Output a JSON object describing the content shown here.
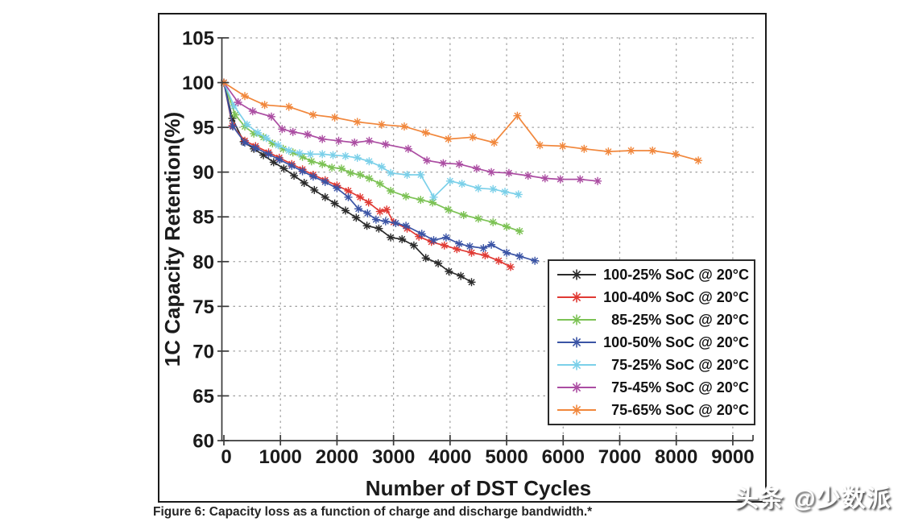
{
  "figure": {
    "caption": "Figure 6: Capacity loss as a function of charge and discharge bandwidth.*",
    "watermark": "头条 @少数派"
  },
  "chart_data": {
    "type": "line",
    "title": "",
    "xlabel": "Number of DST Cycles",
    "ylabel": "1C Capacity Retention(%)",
    "xlim": [
      0,
      9400
    ],
    "ylim": [
      60,
      105
    ],
    "x_ticks": [
      0,
      1000,
      2000,
      3000,
      4000,
      5000,
      6000,
      7000,
      8000,
      9000
    ],
    "y_ticks": [
      60,
      65,
      70,
      75,
      80,
      85,
      90,
      95,
      100,
      105
    ],
    "grid": true,
    "grid_style": "dotted",
    "grid_color": "#a0a0a0",
    "axis_color": "#3a3a3a",
    "marker": "asterisk",
    "legend_position": "lower right",
    "series": [
      {
        "label": "100-25% SoC @ 20°C",
        "color": "#2b2b2b",
        "points": [
          [
            0,
            100
          ],
          [
            150,
            96.0
          ],
          [
            350,
            93.4
          ],
          [
            530,
            92.6
          ],
          [
            700,
            91.9
          ],
          [
            880,
            91.1
          ],
          [
            1060,
            90.4
          ],
          [
            1240,
            89.6
          ],
          [
            1420,
            88.8
          ],
          [
            1600,
            88.0
          ],
          [
            1790,
            87.2
          ],
          [
            1960,
            86.5
          ],
          [
            2150,
            85.7
          ],
          [
            2340,
            84.9
          ],
          [
            2530,
            84.0
          ],
          [
            2740,
            83.7
          ],
          [
            2950,
            82.7
          ],
          [
            3150,
            82.5
          ],
          [
            3360,
            81.8
          ],
          [
            3570,
            80.4
          ],
          [
            3790,
            79.8
          ],
          [
            3980,
            78.9
          ],
          [
            4190,
            78.4
          ],
          [
            4380,
            77.7
          ]
        ]
      },
      {
        "label": "100-40% SoC @ 20°C",
        "color": "#e03a34",
        "points": [
          [
            0,
            100
          ],
          [
            150,
            95.2
          ],
          [
            370,
            93.5
          ],
          [
            560,
            92.9
          ],
          [
            790,
            92.2
          ],
          [
            980,
            91.6
          ],
          [
            1200,
            90.9
          ],
          [
            1390,
            90.3
          ],
          [
            1580,
            89.7
          ],
          [
            1790,
            89.1
          ],
          [
            2000,
            88.5
          ],
          [
            2200,
            87.9
          ],
          [
            2410,
            87.2
          ],
          [
            2560,
            86.6
          ],
          [
            2760,
            85.6
          ],
          [
            2880,
            85.8
          ],
          [
            3000,
            84.4
          ],
          [
            3240,
            83.7
          ],
          [
            3450,
            82.8
          ],
          [
            3670,
            82.2
          ],
          [
            3900,
            81.8
          ],
          [
            4120,
            81.4
          ],
          [
            4380,
            81.0
          ],
          [
            4620,
            80.7
          ],
          [
            4860,
            80.1
          ],
          [
            5070,
            79.4
          ]
        ]
      },
      {
        "label": "85-25% SoC @ 20°C",
        "color": "#7cc254",
        "points": [
          [
            0,
            100
          ],
          [
            200,
            96.4
          ],
          [
            370,
            95.1
          ],
          [
            530,
            94.3
          ],
          [
            700,
            93.9
          ],
          [
            860,
            93.2
          ],
          [
            1050,
            92.6
          ],
          [
            1220,
            92.2
          ],
          [
            1390,
            91.7
          ],
          [
            1550,
            91.2
          ],
          [
            1740,
            90.9
          ],
          [
            1910,
            90.5
          ],
          [
            2080,
            90.4
          ],
          [
            2240,
            89.9
          ],
          [
            2410,
            89.7
          ],
          [
            2570,
            89.3
          ],
          [
            2760,
            88.7
          ],
          [
            2950,
            87.9
          ],
          [
            3220,
            87.3
          ],
          [
            3480,
            86.9
          ],
          [
            3690,
            86.6
          ],
          [
            3970,
            85.8
          ],
          [
            4240,
            85.2
          ],
          [
            4500,
            84.8
          ],
          [
            4760,
            84.4
          ],
          [
            5000,
            83.9
          ],
          [
            5230,
            83.4
          ]
        ]
      },
      {
        "label": "100-50% SoC @ 20°C",
        "color": "#3b54a5",
        "points": [
          [
            0,
            100
          ],
          [
            160,
            95.1
          ],
          [
            370,
            93.3
          ],
          [
            560,
            92.7
          ],
          [
            790,
            92.0
          ],
          [
            980,
            91.4
          ],
          [
            1200,
            90.7
          ],
          [
            1390,
            90.1
          ],
          [
            1580,
            89.5
          ],
          [
            1790,
            88.9
          ],
          [
            2000,
            88.2
          ],
          [
            2200,
            87.2
          ],
          [
            2380,
            85.9
          ],
          [
            2540,
            85.4
          ],
          [
            2690,
            84.7
          ],
          [
            2860,
            84.5
          ],
          [
            3040,
            84.3
          ],
          [
            3220,
            84.0
          ],
          [
            3500,
            83.1
          ],
          [
            3710,
            82.4
          ],
          [
            3930,
            82.7
          ],
          [
            4160,
            82.0
          ],
          [
            4350,
            81.7
          ],
          [
            4590,
            81.5
          ],
          [
            4730,
            81.9
          ],
          [
            5000,
            81.0
          ],
          [
            5230,
            80.6
          ],
          [
            5500,
            80.1
          ]
        ]
      },
      {
        "label": "75-25% SoC @ 20°C",
        "color": "#7bd0e9",
        "points": [
          [
            0,
            100
          ],
          [
            180,
            97.4
          ],
          [
            410,
            95.3
          ],
          [
            600,
            94.4
          ],
          [
            750,
            93.8
          ],
          [
            960,
            93.0
          ],
          [
            1150,
            92.4
          ],
          [
            1340,
            92.1
          ],
          [
            1530,
            92.0
          ],
          [
            1740,
            92.0
          ],
          [
            1930,
            91.9
          ],
          [
            2150,
            91.8
          ],
          [
            2360,
            91.6
          ],
          [
            2570,
            91.2
          ],
          [
            2790,
            90.6
          ],
          [
            2950,
            89.9
          ],
          [
            3240,
            89.7
          ],
          [
            3480,
            89.7
          ],
          [
            3710,
            87.2
          ],
          [
            4000,
            89.0
          ],
          [
            4210,
            88.7
          ],
          [
            4500,
            88.2
          ],
          [
            4760,
            88.1
          ],
          [
            4970,
            87.8
          ],
          [
            5210,
            87.5
          ]
        ]
      },
      {
        "label": "75-45% SoC @ 20°C",
        "color": "#ab4da2",
        "points": [
          [
            0,
            100
          ],
          [
            250,
            97.8
          ],
          [
            510,
            96.8
          ],
          [
            840,
            96.2
          ],
          [
            1030,
            94.8
          ],
          [
            1220,
            94.5
          ],
          [
            1480,
            94.2
          ],
          [
            1740,
            93.7
          ],
          [
            2030,
            93.5
          ],
          [
            2310,
            93.3
          ],
          [
            2570,
            93.5
          ],
          [
            2860,
            93.1
          ],
          [
            3260,
            92.6
          ],
          [
            3590,
            91.3
          ],
          [
            3880,
            91.0
          ],
          [
            4160,
            90.9
          ],
          [
            4470,
            90.4
          ],
          [
            4730,
            90.0
          ],
          [
            5040,
            89.9
          ],
          [
            5380,
            89.6
          ],
          [
            5680,
            89.3
          ],
          [
            5950,
            89.2
          ],
          [
            6300,
            89.2
          ],
          [
            6610,
            89.0
          ]
        ]
      },
      {
        "label": "75-65% SoC @ 20°C",
        "color": "#f1873c",
        "points": [
          [
            0,
            100
          ],
          [
            370,
            98.5
          ],
          [
            720,
            97.5
          ],
          [
            1150,
            97.3
          ],
          [
            1580,
            96.4
          ],
          [
            1960,
            96.1
          ],
          [
            2360,
            95.6
          ],
          [
            2790,
            95.3
          ],
          [
            3190,
            95.1
          ],
          [
            3570,
            94.4
          ],
          [
            3970,
            93.7
          ],
          [
            4400,
            93.9
          ],
          [
            4780,
            93.3
          ],
          [
            5190,
            96.3
          ],
          [
            5590,
            93.0
          ],
          [
            5990,
            92.9
          ],
          [
            6370,
            92.6
          ],
          [
            6800,
            92.3
          ],
          [
            7200,
            92.4
          ],
          [
            7580,
            92.4
          ],
          [
            7990,
            92.0
          ],
          [
            8390,
            91.3
          ]
        ]
      }
    ]
  }
}
